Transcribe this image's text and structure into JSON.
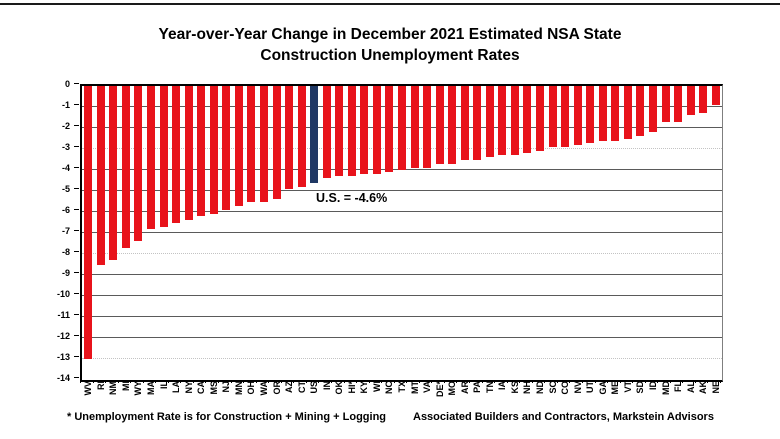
{
  "title": {
    "line1": "Year-over-Year Change in December 2021 Estimated NSA State",
    "line2": "Construction Unemployment Rates"
  },
  "annotation": {
    "us": "U.S. = -4.6%"
  },
  "footnote": {
    "text": "* Unemployment Rate is for Construction + Mining + Logging"
  },
  "source": {
    "text": "Associated Builders and Contractors, Markstein Advisors"
  },
  "colors": {
    "bar": "#e8131b",
    "us_bar": "#1f3864",
    "grid_dark": "#5a5a5a",
    "grid_light": "#c3c3c3",
    "axis": "#000000"
  },
  "chart_data": {
    "type": "bar",
    "title": "Year-over-Year Change in December 2021 Estimated NSA State Construction Unemployment Rates",
    "xlabel": "",
    "ylabel": "",
    "ylim": [
      -14,
      0
    ],
    "ytick_interval": 1,
    "ytick_labels": [
      "0",
      "-1",
      "-2",
      "-3",
      "-4",
      "-5",
      "-6",
      "-7",
      "-8",
      "-9",
      "-10",
      "-11",
      "-12",
      "-13",
      "-14"
    ],
    "grid": true,
    "dashed_gridlines": [
      -3,
      -8,
      -13
    ],
    "legend": "none",
    "sort": "descending magnitude",
    "highlight_category": "US",
    "highlight_value": -4.6,
    "annotation": "U.S. = -4.6%",
    "categories": [
      "WV",
      "RI",
      "NM",
      "MI",
      "WY",
      "MA",
      "IL",
      "LA",
      "NY",
      "CA",
      "MS",
      "NJ",
      "MN",
      "OH",
      "WA",
      "OR",
      "AZ",
      "CT",
      "US",
      "IN",
      "OK",
      "HI*",
      "KY",
      "WI",
      "NC",
      "TX",
      "MT",
      "VA",
      "DE*",
      "MO",
      "AR",
      "PA",
      "TN",
      "IA",
      "KS",
      "NH",
      "ND",
      "SC",
      "CO",
      "NV",
      "UT",
      "GA",
      "ME",
      "VT",
      "SD",
      "ID",
      "MD",
      "FL",
      "AL",
      "AK",
      "NE"
    ],
    "values": [
      -13.0,
      -8.5,
      -8.3,
      -7.7,
      -7.4,
      -6.8,
      -6.7,
      -6.5,
      -6.4,
      -6.2,
      -6.1,
      -5.9,
      -5.7,
      -5.5,
      -5.5,
      -5.4,
      -4.9,
      -4.8,
      -4.6,
      -4.4,
      -4.3,
      -4.3,
      -4.2,
      -4.2,
      -4.1,
      -4.0,
      -3.9,
      -3.9,
      -3.7,
      -3.7,
      -3.5,
      -3.5,
      -3.4,
      -3.3,
      -3.3,
      -3.2,
      -3.1,
      -2.9,
      -2.9,
      -2.8,
      -2.7,
      -2.6,
      -2.6,
      -2.5,
      -2.4,
      -2.2,
      -1.7,
      -1.7,
      -1.4,
      -1.3,
      -0.9
    ]
  }
}
